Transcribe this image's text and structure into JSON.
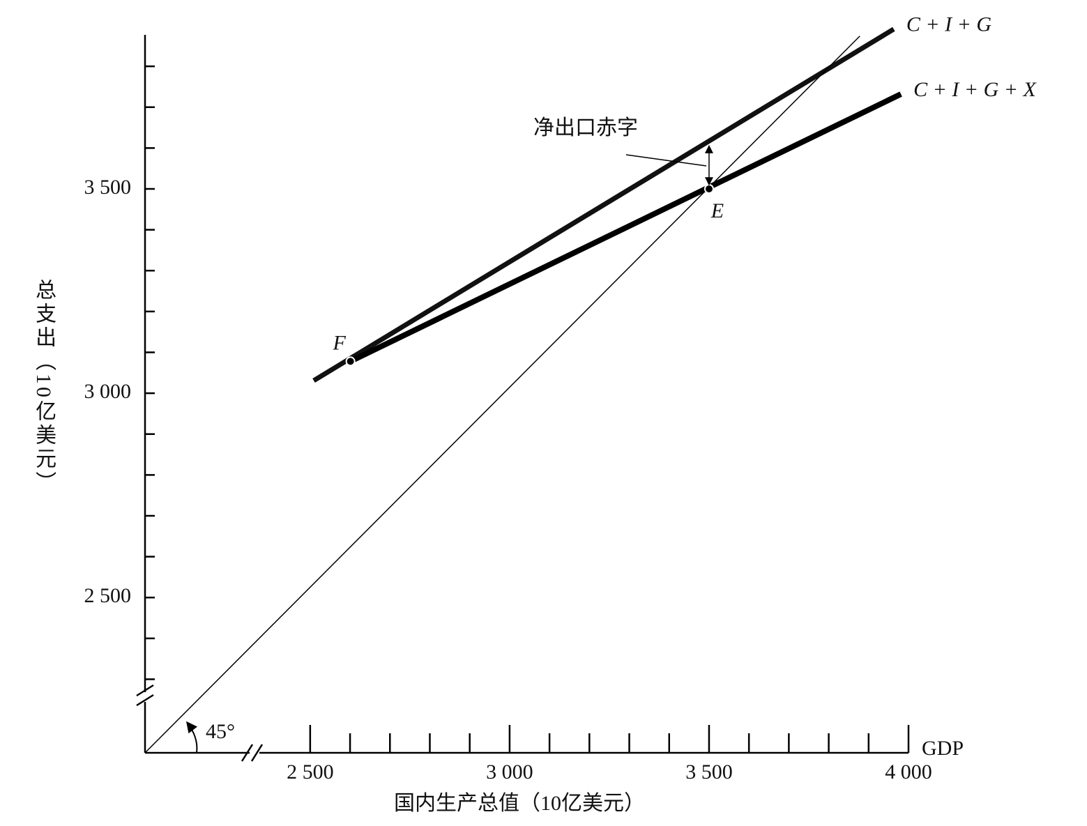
{
  "chart_data": {
    "type": "line",
    "xlabel": "国内生产总值（10亿美元）",
    "ylabel": "总支出（10亿美元）",
    "x_axis_name": "GDP",
    "xlim": [
      2086,
      4000
    ],
    "ylim": [
      2120,
      3877
    ],
    "xticks": [
      {
        "value": 2500,
        "label": "2 500"
      },
      {
        "value": 3000,
        "label": "3 000"
      },
      {
        "value": 3500,
        "label": "3 500"
      },
      {
        "value": 4000,
        "label": "4 000"
      }
    ],
    "x_minor_ticks": [
      2600,
      2700,
      2800,
      2900,
      3100,
      3200,
      3300,
      3400,
      3600,
      3700,
      3800,
      3900
    ],
    "yticks": [
      {
        "value": 2500,
        "label": "2 500"
      },
      {
        "value": 3000,
        "label": "3 000"
      },
      {
        "value": 3500,
        "label": "3 500"
      }
    ],
    "y_minor_ticks": [
      2300,
      2400,
      2600,
      2700,
      2800,
      2900,
      3100,
      3200,
      3300,
      3400,
      3600,
      3700,
      3800
    ],
    "series": [
      {
        "name": "C + I + G",
        "color": "#111111",
        "x": [
          2509,
          3963
        ],
        "values": [
          3031,
          3891
        ]
      },
      {
        "name": "C + I + G + X",
        "color": "#000000",
        "x": [
          2601,
          3981
        ],
        "values": [
          3078,
          3732
        ]
      },
      {
        "name": "45°",
        "color": "#000000",
        "x": [
          2086,
          3878
        ],
        "values": [
          2120,
          3874
        ]
      }
    ],
    "points": [
      {
        "label": "F",
        "x": 2601,
        "y": 3078
      },
      {
        "label": "E",
        "x": 3500,
        "y": 3500
      }
    ],
    "annotation": {
      "text": "净出口赤字",
      "x": 3500,
      "y_from": 3500,
      "y_to": 3609
    }
  }
}
